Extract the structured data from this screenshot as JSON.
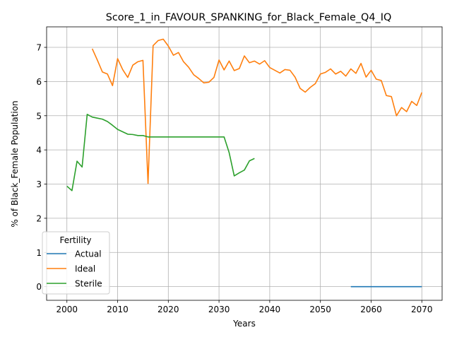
{
  "chart_data": {
    "type": "line",
    "title": "Score_1_in_FAVOUR_SPANKING_for_Black_Female_Q4_IQ",
    "xlabel": "Years",
    "ylabel": "% of Black_Female Population",
    "xlim": [
      1996,
      2074
    ],
    "ylim": [
      -0.4,
      7.6
    ],
    "x_ticks": [
      2000,
      2010,
      2020,
      2030,
      2040,
      2050,
      2060,
      2070
    ],
    "y_ticks": [
      0,
      1,
      2,
      3,
      4,
      5,
      6,
      7
    ],
    "grid": true,
    "legend": {
      "title": "Fertility",
      "position": "lower-left"
    },
    "series": [
      {
        "name": "Actual",
        "color": "#1f77b4",
        "x": [
          2056,
          2058,
          2060,
          2062,
          2064,
          2066,
          2068,
          2070
        ],
        "y": [
          0,
          0,
          0,
          0,
          0,
          0,
          0,
          0
        ]
      },
      {
        "name": "Ideal",
        "color": "#ff7f0e",
        "x": [
          2005,
          2006,
          2007,
          2008,
          2009,
          2010,
          2011,
          2012,
          2013,
          2014,
          2015,
          2016,
          2017,
          2018,
          2019,
          2020,
          2021,
          2022,
          2023,
          2024,
          2025,
          2026,
          2027,
          2028,
          2029,
          2030,
          2031,
          2032,
          2033,
          2034,
          2035,
          2036,
          2037,
          2038,
          2039,
          2040,
          2041,
          2042,
          2043,
          2044,
          2045,
          2046,
          2047,
          2048,
          2049,
          2050,
          2051,
          2052,
          2053,
          2054,
          2055,
          2056,
          2057,
          2058,
          2059,
          2060,
          2061,
          2062,
          2063,
          2064,
          2065,
          2066,
          2067,
          2068,
          2069,
          2070
        ],
        "y": [
          6.96,
          6.63,
          6.28,
          6.22,
          5.88,
          6.67,
          6.35,
          6.12,
          6.48,
          6.58,
          6.62,
          3.02,
          7.05,
          7.2,
          7.24,
          7.04,
          6.77,
          6.85,
          6.58,
          6.42,
          6.2,
          6.09,
          5.96,
          5.98,
          6.12,
          6.63,
          6.34,
          6.6,
          6.32,
          6.38,
          6.75,
          6.55,
          6.6,
          6.51,
          6.61,
          6.41,
          6.33,
          6.25,
          6.35,
          6.33,
          6.13,
          5.8,
          5.69,
          5.83,
          5.94,
          6.22,
          6.27,
          6.37,
          6.22,
          6.3,
          6.16,
          6.37,
          6.24,
          6.53,
          6.13,
          6.33,
          6.07,
          6.03,
          5.59,
          5.56,
          5.0,
          5.24,
          5.12,
          5.42,
          5.3,
          5.68
        ]
      },
      {
        "name": "Sterile",
        "color": "#2ca02c",
        "x": [
          2000,
          2001,
          2002,
          2003,
          2004,
          2005,
          2006,
          2007,
          2008,
          2009,
          2010,
          2011,
          2012,
          2013,
          2014,
          2015,
          2016,
          2017,
          2018,
          2019,
          2020,
          2021,
          2022,
          2023,
          2024,
          2025,
          2026,
          2027,
          2028,
          2029,
          2030,
          2031,
          2032,
          2033,
          2034,
          2035,
          2036,
          2037
        ],
        "y": [
          2.94,
          2.81,
          3.67,
          3.5,
          5.04,
          4.96,
          4.93,
          4.9,
          4.83,
          4.72,
          4.6,
          4.53,
          4.46,
          4.45,
          4.42,
          4.42,
          4.38,
          4.38,
          4.38,
          4.38,
          4.38,
          4.38,
          4.38,
          4.38,
          4.38,
          4.38,
          4.38,
          4.38,
          4.38,
          4.38,
          4.38,
          4.38,
          3.92,
          3.24,
          3.33,
          3.41,
          3.68,
          3.75
        ]
      }
    ]
  }
}
